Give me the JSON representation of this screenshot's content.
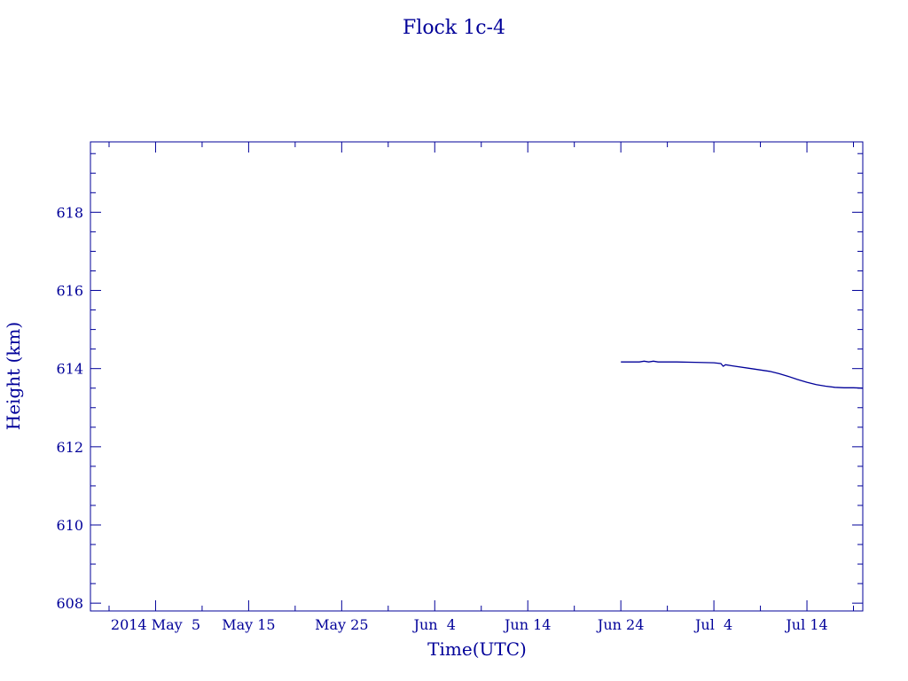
{
  "chart_data": {
    "type": "line",
    "title": "Flock 1c-4",
    "xlabel": "Time(UTC)",
    "ylabel": "Height (km)",
    "color": "#000099",
    "background": "#ffffff",
    "xlim": [
      "2014-04-28",
      "2014-07-20"
    ],
    "ylim": [
      607.8,
      619.8
    ],
    "x_ticks": [
      {
        "date": "2014-05-05",
        "label": "2014 May  5"
      },
      {
        "date": "2014-05-15",
        "label": "May 15"
      },
      {
        "date": "2014-05-25",
        "label": "May 25"
      },
      {
        "date": "2014-06-04",
        "label": "Jun  4"
      },
      {
        "date": "2014-06-14",
        "label": "Jun 14"
      },
      {
        "date": "2014-06-24",
        "label": "Jun 24"
      },
      {
        "date": "2014-07-04",
        "label": "Jul  4"
      },
      {
        "date": "2014-07-14",
        "label": "Jul 14"
      }
    ],
    "x_minor_days": 5,
    "y_ticks": [
      608,
      610,
      612,
      614,
      616,
      618
    ],
    "y_minor_step": 0.5,
    "grid": false,
    "series": [
      {
        "x": [
          "2014-06-24",
          "2014-06-26",
          "2014-06-26T12:00",
          "2014-06-27",
          "2014-06-27T12:00",
          "2014-06-28",
          "2014-06-30",
          "2014-07-02",
          "2014-07-04",
          "2014-07-04T18:00",
          "2014-07-05",
          "2014-07-05T06:00",
          "2014-07-06",
          "2014-07-08",
          "2014-07-10",
          "2014-07-11",
          "2014-07-12",
          "2014-07-13",
          "2014-07-14",
          "2014-07-15",
          "2014-07-16",
          "2014-07-17",
          "2014-07-18",
          "2014-07-19",
          "2014-07-20"
        ],
        "y": [
          614.17,
          614.17,
          614.19,
          614.17,
          614.19,
          614.17,
          614.17,
          614.16,
          614.15,
          614.13,
          614.06,
          614.1,
          614.07,
          614.0,
          613.93,
          613.87,
          613.8,
          613.72,
          613.65,
          613.59,
          613.55,
          613.52,
          613.51,
          613.51,
          613.5
        ]
      }
    ]
  }
}
